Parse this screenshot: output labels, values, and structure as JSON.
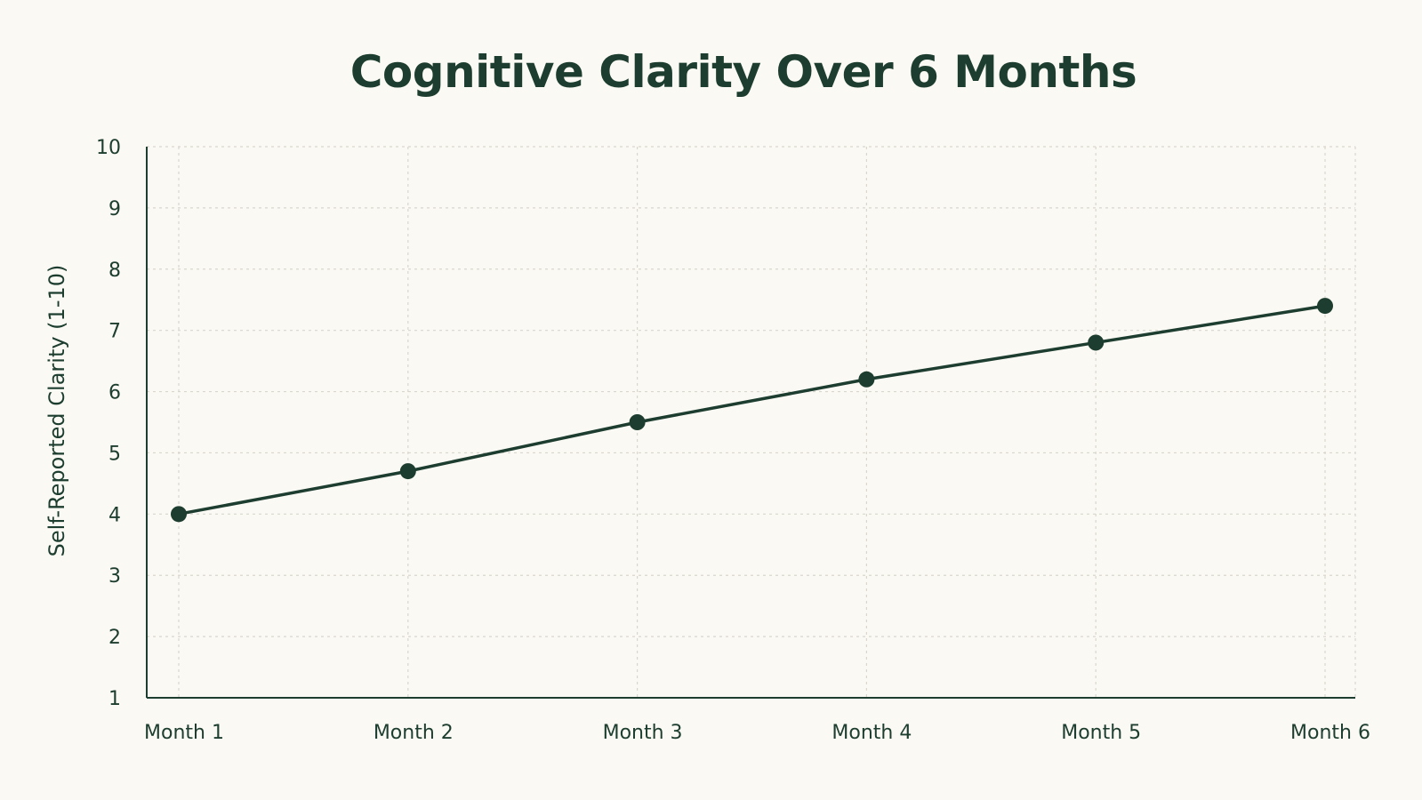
{
  "chart_data": {
    "type": "line",
    "title": "Cognitive Clarity Over 6 Months",
    "xlabel": "",
    "ylabel": "Self-Reported Clarity (1-10)",
    "categories": [
      "Month 1",
      "Month 2",
      "Month 3",
      "Month 4",
      "Month 5",
      "Month 6"
    ],
    "series": [
      {
        "values": [
          4.0,
          4.7,
          5.5,
          6.2,
          6.8,
          7.4
        ]
      }
    ],
    "ylim": [
      1,
      10
    ],
    "yticks": [
      1,
      2,
      3,
      4,
      5,
      6,
      7,
      8,
      9,
      10
    ],
    "grid": true,
    "legend": "none",
    "colors": {
      "line": "#1c3d2f",
      "text": "#1c3d2f",
      "grid": "#d9d6ce",
      "background": "#fbf9f3"
    }
  }
}
